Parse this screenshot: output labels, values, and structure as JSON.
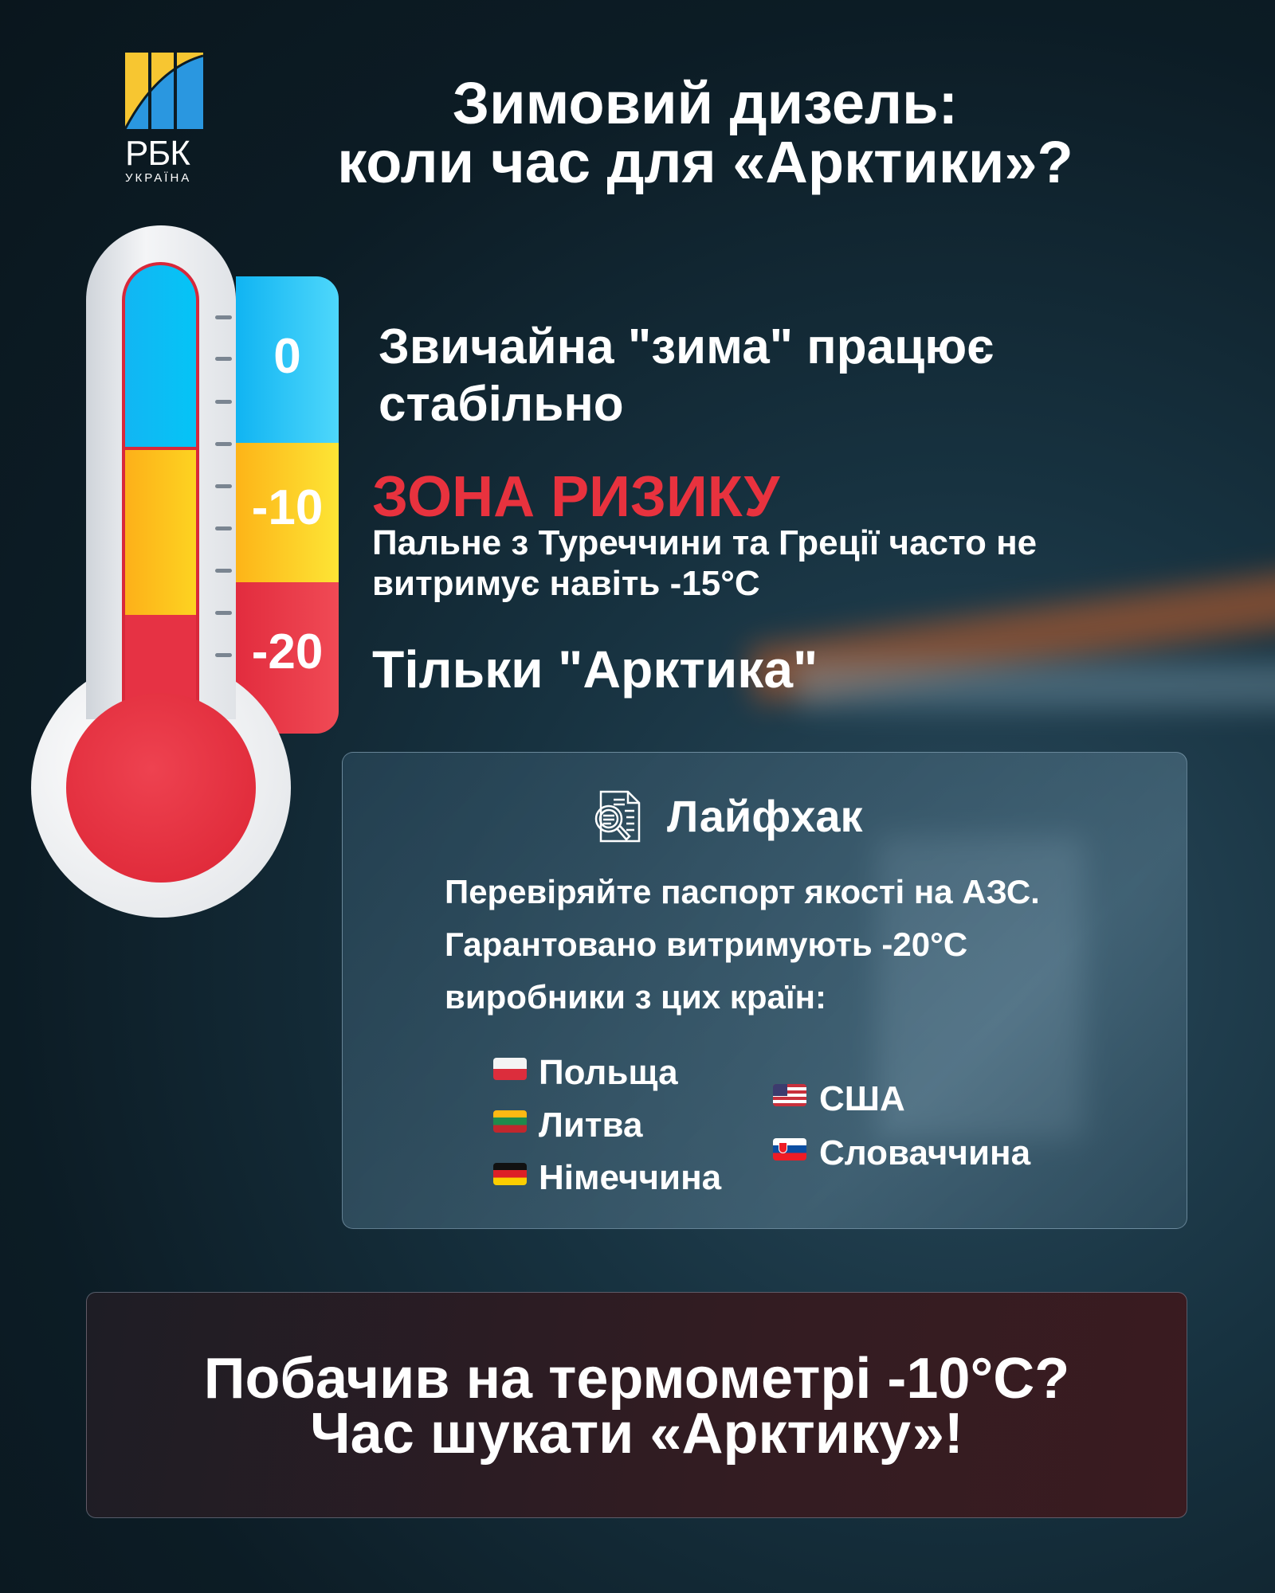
{
  "brand": {
    "name": "РБК",
    "sub": "УКРАЇНА",
    "colors": {
      "yellow": "#f7c631",
      "blue": "#2a97e0"
    }
  },
  "title": {
    "line1": "Зимовий дизель:",
    "line2": "коли час для «Арктики»?"
  },
  "thermometer": {
    "scale_labels": [
      "0",
      "-10",
      "-20"
    ],
    "colors": {
      "normal": "#22c1f4",
      "risk": "#fdc417",
      "arctic": "#e63244"
    }
  },
  "zones": {
    "normal": {
      "line1": "Звичайна \"зима\" працює",
      "line2": "стабільно"
    },
    "risk": {
      "heading": "ЗОНА РИЗИКУ",
      "line1": "Пальне з Туреччини та Греції часто не",
      "line2": "витримує навіть -15°C",
      "color": "#e8323e"
    },
    "arctic": {
      "text": "Тільки \"Арктика\""
    }
  },
  "lifehack": {
    "icon": "document-search-icon",
    "title": "Лайфхак",
    "lines": [
      "Перевіряйте паспорт якості на АЗС.",
      "Гарантовано витримують -20°C",
      "виробники з цих країн:"
    ],
    "countries": [
      {
        "name": "Польща",
        "flag": "poland-flag"
      },
      {
        "name": "Литва",
        "flag": "lithuania-flag"
      },
      {
        "name": "Німеччина",
        "flag": "germany-flag"
      },
      {
        "name": "США",
        "flag": "usa-flag"
      },
      {
        "name": "Словаччина",
        "flag": "slovakia-flag"
      }
    ]
  },
  "footer": {
    "line1": "Побачив на термометрі -10°C?",
    "line2": "Час шукати «Арктику»!"
  }
}
